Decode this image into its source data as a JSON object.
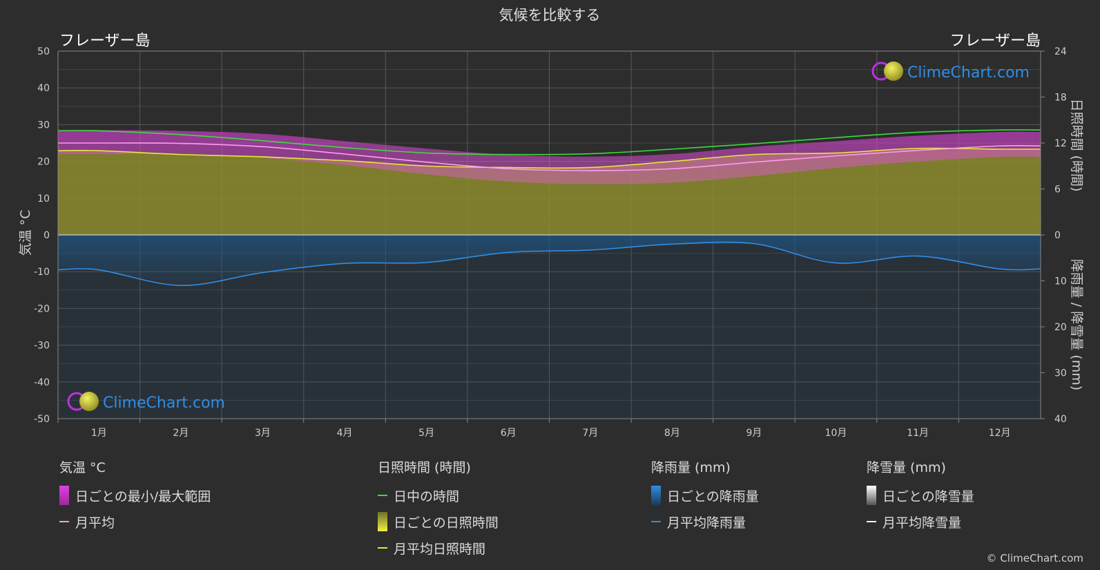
{
  "title": "気候を比較する",
  "location_left": "フレーザー島",
  "location_right": "フレーザー島",
  "logo_text": "ClimeChart.com",
  "copyright": "© ClimeChart.com",
  "colors": {
    "daylight": "#3ddc3d",
    "sunshine_fill": "#8c8c2e",
    "sunshine_line": "#e8e83a",
    "temp_range": "#e040e0",
    "temp_avg": "#ff9cf0",
    "rain_fill": "#1e5a8c",
    "rain_line": "#2f8ee6",
    "snow": "#ffffff",
    "logo_blue": "#2f8ee6"
  },
  "legend": {
    "temperature": {
      "header": "気温 °C",
      "items": [
        "日ごとの最小/最大範囲",
        "月平均"
      ]
    },
    "sunshine": {
      "header": "日照時間 (時間)",
      "items": [
        "日中の時間",
        "日ごとの日照時間",
        "月平均日照時間"
      ]
    },
    "rain": {
      "header": "降雨量 (mm)",
      "items": [
        "日ごとの降雨量",
        "月平均降雨量"
      ]
    },
    "snow": {
      "header": "降雪量 (mm)",
      "items": [
        "日ごとの降雪量",
        "月平均降雪量"
      ]
    }
  },
  "chart_data": {
    "type": "line",
    "title": "気候を比較する",
    "categories": [
      "1月",
      "2月",
      "3月",
      "4月",
      "5月",
      "6月",
      "7月",
      "8月",
      "9月",
      "10月",
      "11月",
      "12月"
    ],
    "y_left": {
      "label": "気温 °C",
      "range": [
        -50,
        50
      ],
      "ticks": [
        50,
        40,
        30,
        20,
        10,
        0,
        -10,
        -20,
        -30,
        -40,
        -50
      ]
    },
    "y_right_top": {
      "label": "日照時間 (時間)",
      "range": [
        0,
        24
      ],
      "ticks": [
        24,
        18,
        12,
        6,
        0
      ]
    },
    "y_right_bottom": {
      "label": "降雨量 / 降雪量 (mm)",
      "range": [
        0,
        40
      ],
      "ticks": [
        10,
        20,
        30,
        40
      ]
    },
    "grid": true,
    "series": [
      {
        "name": "日中の時間",
        "axis": "sunshine_hours",
        "values": [
          13.6,
          13.1,
          12.3,
          11.4,
          10.7,
          10.5,
          10.6,
          11.2,
          11.9,
          12.7,
          13.4,
          13.7
        ]
      },
      {
        "name": "月平均日照時間",
        "axis": "sunshine_hours",
        "values": [
          11.0,
          10.5,
          10.2,
          9.7,
          9.0,
          8.8,
          8.8,
          9.6,
          10.5,
          10.7,
          11.3,
          11.2
        ]
      },
      {
        "name": "月平均",
        "axis": "temperature",
        "values": [
          25.0,
          24.9,
          24.0,
          22.0,
          19.8,
          18.0,
          17.5,
          18.0,
          19.8,
          21.5,
          23.0,
          24.2
        ]
      },
      {
        "name": "日ごとの最小/最大範囲",
        "axis": "temperature",
        "low": [
          22.0,
          22.0,
          21.0,
          19.0,
          16.5,
          14.5,
          13.8,
          14.2,
          16.0,
          18.2,
          20.0,
          21.2
        ],
        "high": [
          28.5,
          28.3,
          27.5,
          25.5,
          23.5,
          21.8,
          21.3,
          22.0,
          24.0,
          25.5,
          27.0,
          28.0
        ]
      },
      {
        "name": "月平均降雨量",
        "axis": "precipitation_mm",
        "values": [
          7.6,
          11.0,
          8.2,
          6.2,
          6.0,
          3.8,
          3.3,
          2.0,
          1.9,
          6.1,
          4.6,
          7.4
        ]
      }
    ]
  }
}
